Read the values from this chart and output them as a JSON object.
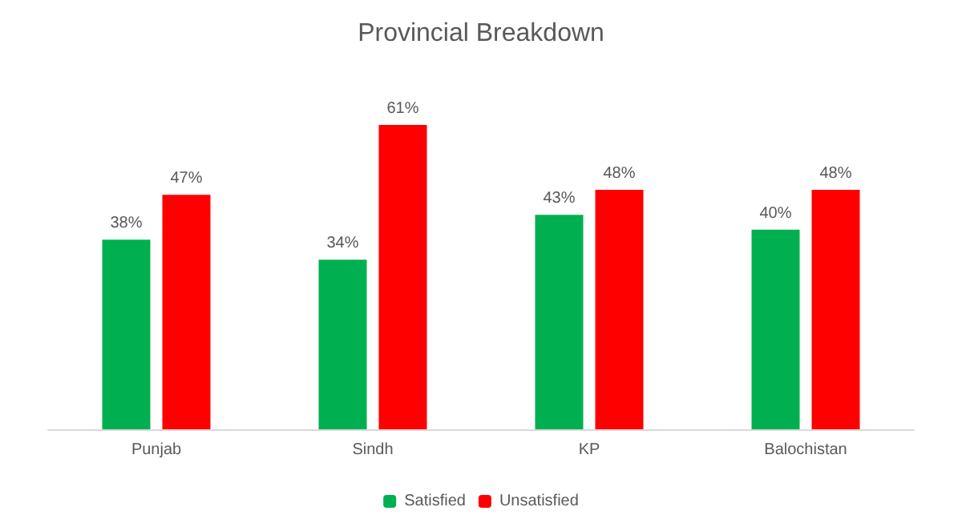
{
  "chart_data": {
    "type": "bar",
    "title": "Provincial Breakdown",
    "categories": [
      "Punjab",
      "Sindh",
      "KP",
      "Balochistan"
    ],
    "series": [
      {
        "name": "Satisfied",
        "color": "#00b050",
        "values": [
          38,
          34,
          43,
          40
        ],
        "value_labels": [
          "38%",
          "34%",
          "43%",
          "40%"
        ]
      },
      {
        "name": "Unsatisfied",
        "color": "#ff0000",
        "values": [
          47,
          61,
          48,
          48
        ],
        "value_labels": [
          "47%",
          "61%",
          "48%",
          "48%"
        ]
      }
    ],
    "legend": "bottom"
  }
}
